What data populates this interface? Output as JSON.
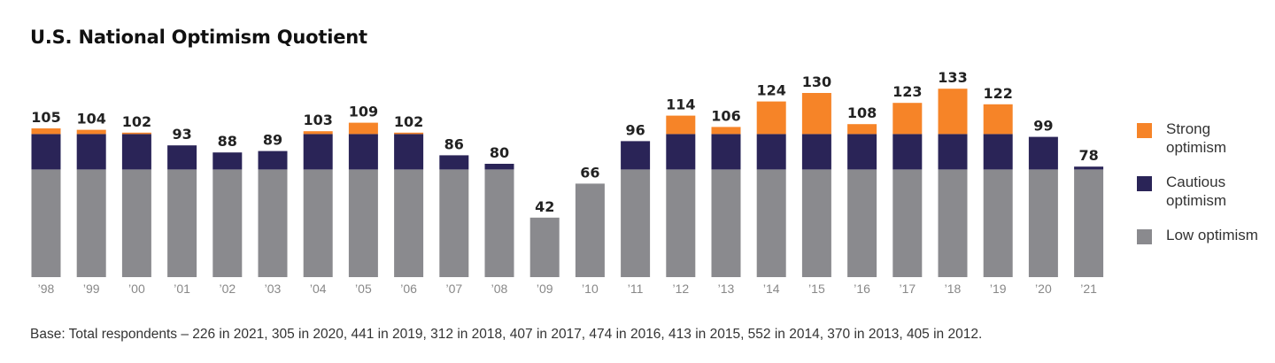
{
  "title": "U.S. National Optimism Quotient",
  "footnote": "Base: Total respondents – 226 in 2021, 305 in 2020, 441 in 2019, 312 in 2018, 407 in 2017, 474 in 2016, 413 in 2015, 552 in 2014, 370 in 2013, 405 in 2012.",
  "colors": {
    "strong": "#f68428",
    "cautious": "#2a2457",
    "low": "#8a8a8e",
    "value_label": "#222222",
    "tick_label": "#888888"
  },
  "legend": [
    {
      "key": "strong",
      "label": "Strong optimism",
      "color": "#f68428"
    },
    {
      "key": "cautious",
      "label": "Cautious optimism",
      "color": "#2a2457"
    },
    {
      "key": "low",
      "label": "Low optimism",
      "color": "#8a8a8e"
    }
  ],
  "chart_data": {
    "type": "bar",
    "stacked": true,
    "title": "U.S. National Optimism Quotient",
    "categories": [
      "’98",
      "’99",
      "’00",
      "’01",
      "’02",
      "’03",
      "’04",
      "’05",
      "’06",
      "’07",
      "’08",
      "’09",
      "’10",
      "’11",
      "’12",
      "’13",
      "’14",
      "’15",
      "’16",
      "’17",
      "’18",
      "’19",
      "’20",
      "’21"
    ],
    "totals": [
      105,
      104,
      102,
      93,
      88,
      89,
      103,
      109,
      102,
      86,
      80,
      42,
      66,
      96,
      114,
      106,
      124,
      130,
      108,
      123,
      133,
      122,
      99,
      78
    ],
    "series": [
      {
        "name": "Low optimism",
        "values": [
          76,
          76,
          76,
          76,
          76,
          76,
          76,
          76,
          76,
          76,
          76,
          42,
          66,
          76,
          76,
          76,
          76,
          76,
          76,
          76,
          76,
          76,
          76,
          76
        ]
      },
      {
        "name": "Cautious optimism",
        "values": [
          25,
          25,
          25,
          17,
          12,
          13,
          25,
          25,
          25,
          10,
          4,
          0,
          0,
          20,
          25,
          25,
          25,
          25,
          25,
          25,
          25,
          25,
          23,
          2
        ]
      },
      {
        "name": "Strong optimism",
        "values": [
          4,
          3,
          1,
          0,
          0,
          0,
          2,
          8,
          1,
          0,
          0,
          0,
          0,
          0,
          13,
          5,
          23,
          29,
          7,
          22,
          32,
          21,
          0,
          0
        ]
      }
    ],
    "ylim": [
      0,
      140
    ],
    "grid": false,
    "legend_position": "right"
  }
}
